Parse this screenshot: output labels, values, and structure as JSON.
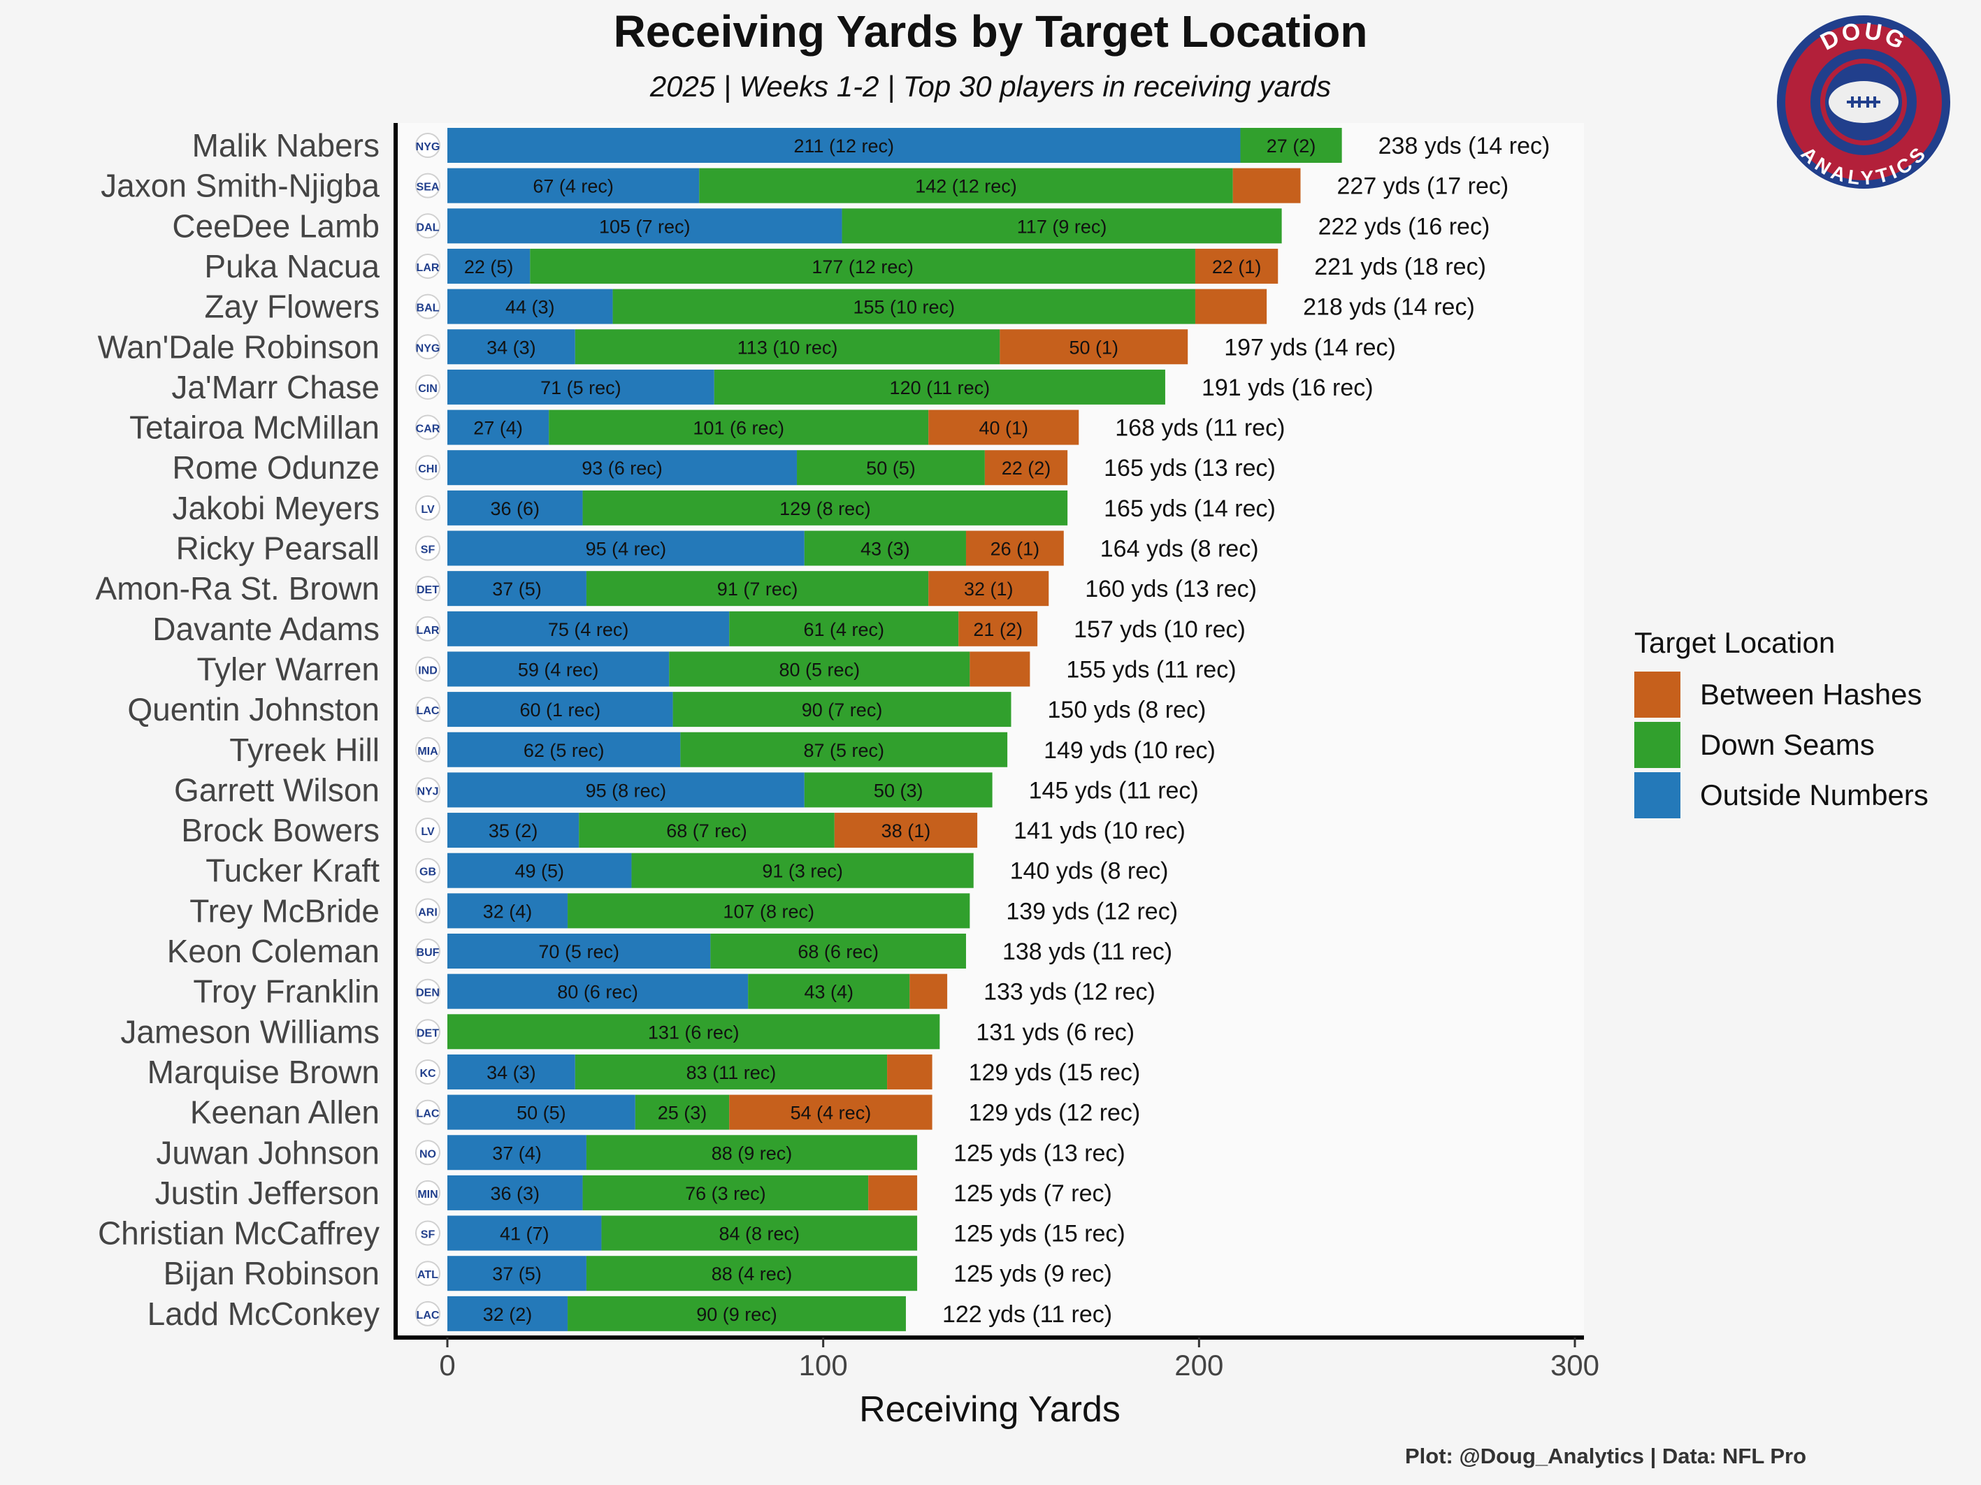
{
  "title": "Receiving Yards by Target Location",
  "subtitle": "2025 | Weeks 1-2 | Top 30 players in receiving yards",
  "caption": "Plot: @Doug_Analytics   |   Data: NFL Pro",
  "logo": {
    "top_text": "DOUG",
    "bottom_text": "ANALYTICS"
  },
  "colors": {
    "outside": "#2479b9",
    "seams": "#31a02d",
    "hashes": "#c6601c",
    "logo_ring": "#b3203a",
    "logo_navy": "#213f8c"
  },
  "chart_data": {
    "type": "bar",
    "orientation": "horizontal",
    "stacked": true,
    "xlabel": "Receiving Yards",
    "xlim": [
      0,
      300
    ],
    "xticks": [
      0,
      100,
      200,
      300
    ],
    "legend": {
      "title": "Target Location",
      "position": "right",
      "entries": [
        "Between Hashes",
        "Down Seams",
        "Outside Numbers"
      ]
    },
    "series_order": [
      "Outside Numbers",
      "Down Seams",
      "Between Hashes"
    ],
    "players": [
      {
        "name": "Malik Nabers",
        "team": "NYG",
        "outside": 211,
        "seams": 27,
        "hashes": 0,
        "outside_label": "211 (12 rec)",
        "seams_label": "27 (2)",
        "hashes_label": "",
        "total_label": "238 yds (14 rec)"
      },
      {
        "name": "Jaxon Smith-Njigba",
        "team": "SEA",
        "outside": 67,
        "seams": 142,
        "hashes": 18,
        "outside_label": "67 (4 rec)",
        "seams_label": "142 (12 rec)",
        "hashes_label": "",
        "total_label": "227 yds (17 rec)"
      },
      {
        "name": "CeeDee Lamb",
        "team": "DAL",
        "outside": 105,
        "seams": 117,
        "hashes": 0,
        "outside_label": "105 (7 rec)",
        "seams_label": "117 (9 rec)",
        "hashes_label": "",
        "total_label": "222 yds (16 rec)"
      },
      {
        "name": "Puka Nacua",
        "team": "LAR",
        "outside": 22,
        "seams": 177,
        "hashes": 22,
        "outside_label": "22 (5)",
        "seams_label": "177 (12 rec)",
        "hashes_label": "22 (1)",
        "total_label": "221 yds (18 rec)"
      },
      {
        "name": "Zay Flowers",
        "team": "BAL",
        "outside": 44,
        "seams": 155,
        "hashes": 19,
        "outside_label": "44 (3)",
        "seams_label": "155 (10 rec)",
        "hashes_label": "",
        "total_label": "218 yds (14 rec)"
      },
      {
        "name": "Wan'Dale Robinson",
        "team": "NYG",
        "outside": 34,
        "seams": 113,
        "hashes": 50,
        "outside_label": "34 (3)",
        "seams_label": "113 (10 rec)",
        "hashes_label": "50 (1)",
        "total_label": "197 yds (14 rec)"
      },
      {
        "name": "Ja'Marr Chase",
        "team": "CIN",
        "outside": 71,
        "seams": 120,
        "hashes": 0,
        "outside_label": "71 (5 rec)",
        "seams_label": "120 (11 rec)",
        "hashes_label": "",
        "total_label": "191 yds (16 rec)"
      },
      {
        "name": "Tetairoa McMillan",
        "team": "CAR",
        "outside": 27,
        "seams": 101,
        "hashes": 40,
        "outside_label": "27 (4)",
        "seams_label": "101 (6 rec)",
        "hashes_label": "40 (1)",
        "total_label": "168 yds (11 rec)"
      },
      {
        "name": "Rome Odunze",
        "team": "CHI",
        "outside": 93,
        "seams": 50,
        "hashes": 22,
        "outside_label": "93 (6 rec)",
        "seams_label": "50 (5)",
        "hashes_label": "22 (2)",
        "total_label": "165 yds (13 rec)"
      },
      {
        "name": "Jakobi Meyers",
        "team": "LV",
        "outside": 36,
        "seams": 129,
        "hashes": 0,
        "outside_label": "36 (6)",
        "seams_label": "129 (8 rec)",
        "hashes_label": "",
        "total_label": "165 yds (14 rec)"
      },
      {
        "name": "Ricky Pearsall",
        "team": "SF",
        "outside": 95,
        "seams": 43,
        "hashes": 26,
        "outside_label": "95 (4 rec)",
        "seams_label": "43 (3)",
        "hashes_label": "26 (1)",
        "total_label": "164 yds (8 rec)"
      },
      {
        "name": "Amon-Ra St. Brown",
        "team": "DET",
        "outside": 37,
        "seams": 91,
        "hashes": 32,
        "outside_label": "37 (5)",
        "seams_label": "91 (7 rec)",
        "hashes_label": "32 (1)",
        "total_label": "160 yds (13 rec)"
      },
      {
        "name": "Davante Adams",
        "team": "LAR",
        "outside": 75,
        "seams": 61,
        "hashes": 21,
        "outside_label": "75 (4 rec)",
        "seams_label": "61 (4 rec)",
        "hashes_label": "21 (2)",
        "total_label": "157 yds (10 rec)"
      },
      {
        "name": "Tyler Warren",
        "team": "IND",
        "outside": 59,
        "seams": 80,
        "hashes": 16,
        "outside_label": "59 (4 rec)",
        "seams_label": "80 (5 rec)",
        "hashes_label": "",
        "total_label": "155 yds (11 rec)"
      },
      {
        "name": "Quentin Johnston",
        "team": "LAC",
        "outside": 60,
        "seams": 90,
        "hashes": 0,
        "outside_label": "60 (1 rec)",
        "seams_label": "90 (7 rec)",
        "hashes_label": "",
        "total_label": "150 yds (8 rec)"
      },
      {
        "name": "Tyreek Hill",
        "team": "MIA",
        "outside": 62,
        "seams": 87,
        "hashes": 0,
        "outside_label": "62 (5 rec)",
        "seams_label": "87 (5 rec)",
        "hashes_label": "",
        "total_label": "149 yds (10 rec)"
      },
      {
        "name": "Garrett Wilson",
        "team": "NYJ",
        "outside": 95,
        "seams": 50,
        "hashes": 0,
        "outside_label": "95 (8 rec)",
        "seams_label": "50 (3)",
        "hashes_label": "",
        "total_label": "145 yds (11 rec)"
      },
      {
        "name": "Brock Bowers",
        "team": "LV",
        "outside": 35,
        "seams": 68,
        "hashes": 38,
        "outside_label": "35 (2)",
        "seams_label": "68 (7 rec)",
        "hashes_label": "38 (1)",
        "total_label": "141 yds (10 rec)"
      },
      {
        "name": "Tucker Kraft",
        "team": "GB",
        "outside": 49,
        "seams": 91,
        "hashes": 0,
        "outside_label": "49 (5)",
        "seams_label": "91 (3 rec)",
        "hashes_label": "",
        "total_label": "140 yds (8 rec)"
      },
      {
        "name": "Trey McBride",
        "team": "ARI",
        "outside": 32,
        "seams": 107,
        "hashes": 0,
        "outside_label": "32 (4)",
        "seams_label": "107 (8 rec)",
        "hashes_label": "",
        "total_label": "139 yds (12 rec)"
      },
      {
        "name": "Keon Coleman",
        "team": "BUF",
        "outside": 70,
        "seams": 68,
        "hashes": 0,
        "outside_label": "70 (5 rec)",
        "seams_label": "68 (6 rec)",
        "hashes_label": "",
        "total_label": "138 yds (11 rec)"
      },
      {
        "name": "Troy Franklin",
        "team": "DEN",
        "outside": 80,
        "seams": 43,
        "hashes": 10,
        "outside_label": "80 (6 rec)",
        "seams_label": "43 (4)",
        "hashes_label": "",
        "total_label": "133 yds (12 rec)"
      },
      {
        "name": "Jameson Williams",
        "team": "DET",
        "outside": 0,
        "seams": 131,
        "hashes": 0,
        "outside_label": "",
        "seams_label": "131 (6 rec)",
        "hashes_label": "",
        "total_label": "131 yds (6 rec)"
      },
      {
        "name": "Marquise Brown",
        "team": "KC",
        "outside": 34,
        "seams": 83,
        "hashes": 12,
        "outside_label": "34 (3)",
        "seams_label": "83 (11 rec)",
        "hashes_label": "",
        "total_label": "129 yds (15 rec)"
      },
      {
        "name": "Keenan Allen",
        "team": "LAC",
        "outside": 50,
        "seams": 25,
        "hashes": 54,
        "outside_label": "50 (5)",
        "seams_label": "25 (3)",
        "hashes_label": "54 (4 rec)",
        "total_label": "129 yds (12 rec)"
      },
      {
        "name": "Juwan Johnson",
        "team": "NO",
        "outside": 37,
        "seams": 88,
        "hashes": 0,
        "outside_label": "37 (4)",
        "seams_label": "88 (9 rec)",
        "hashes_label": "",
        "total_label": "125 yds (13 rec)"
      },
      {
        "name": "Justin Jefferson",
        "team": "MIN",
        "outside": 36,
        "seams": 76,
        "hashes": 13,
        "outside_label": "36 (3)",
        "seams_label": "76 (3 rec)",
        "hashes_label": "",
        "total_label": "125 yds (7 rec)"
      },
      {
        "name": "Christian McCaffrey",
        "team": "SF",
        "outside": 41,
        "seams": 84,
        "hashes": 0,
        "outside_label": "41 (7)",
        "seams_label": "84 (8 rec)",
        "hashes_label": "",
        "total_label": "125 yds (15 rec)"
      },
      {
        "name": "Bijan Robinson",
        "team": "ATL",
        "outside": 37,
        "seams": 88,
        "hashes": 0,
        "outside_label": "37 (5)",
        "seams_label": "88 (4 rec)",
        "hashes_label": "",
        "total_label": "125 yds (9 rec)"
      },
      {
        "name": "Ladd McConkey",
        "team": "LAC",
        "outside": 32,
        "seams": 90,
        "hashes": 0,
        "outside_label": "32 (2)",
        "seams_label": "90 (9 rec)",
        "hashes_label": "",
        "total_label": "122 yds (11 rec)"
      }
    ]
  }
}
